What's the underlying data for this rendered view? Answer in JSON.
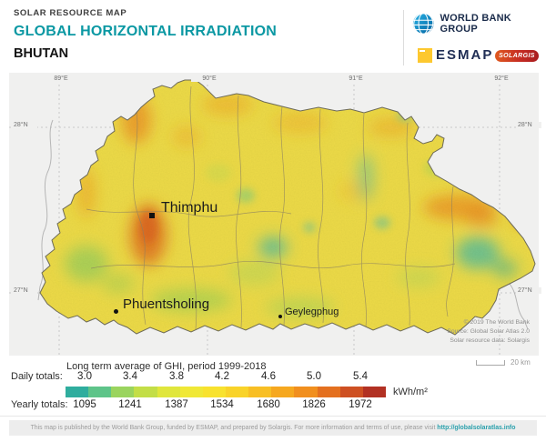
{
  "header": {
    "eyebrow": "SOLAR RESOURCE MAP",
    "title": "GLOBAL HORIZONTAL IRRADIATION",
    "country": "BHUTAN",
    "logos": {
      "world_bank": "WORLD BANK GROUP",
      "esmap": "ESMAP",
      "solargis": "SOLARGIS"
    },
    "accent_color": "#0b98a3"
  },
  "map": {
    "grid": {
      "lon": [
        "89°E",
        "90°E",
        "91°E",
        "92°E"
      ],
      "lat": [
        "28°N",
        "27°N"
      ]
    },
    "cities": [
      {
        "name": "Thimphu",
        "marker": "square"
      },
      {
        "name": "Phuentsholing",
        "marker": "dot"
      },
      {
        "name": "Geylegphug",
        "marker": "dot"
      }
    ],
    "credits": [
      "© 2019 The World Bank",
      "Source: Global Solar Atlas 2.0",
      "Solar resource data: Solargis"
    ],
    "scale_label": "20 km"
  },
  "legend": {
    "title": "Long term average of GHI, period 1999-2018",
    "daily_label": "Daily totals:",
    "yearly_label": "Yearly totals:",
    "daily": [
      "3.0",
      "3.4",
      "3.8",
      "4.2",
      "4.6",
      "5.0",
      "5.4"
    ],
    "yearly": [
      "1095",
      "1241",
      "1387",
      "1534",
      "1680",
      "1826",
      "1972"
    ],
    "unit": "kWh/m²",
    "colors": [
      "#2fad9e",
      "#5ec489",
      "#9ad45e",
      "#c3de47",
      "#e0e63c",
      "#f0e836",
      "#f8e22e",
      "#f9d329",
      "#f8bf24",
      "#f6a81f",
      "#f18f1e",
      "#e4701f",
      "#ce5022",
      "#b23123"
    ]
  },
  "footer": {
    "text": "This map is published by the World Bank Group, funded by ESMAP, and prepared by Solargis. For more information and terms of use, please visit ",
    "link": "http://globalsolaratlas.info"
  }
}
